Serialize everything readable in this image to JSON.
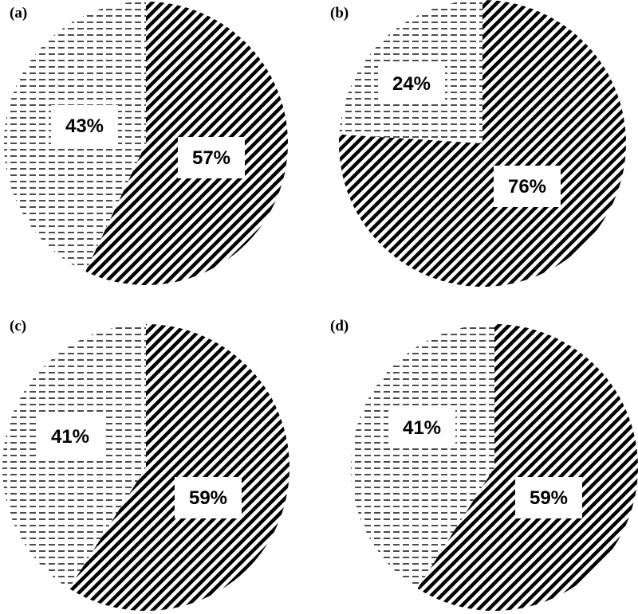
{
  "chart_data": [
    {
      "type": "pie",
      "panel_label": "(a)",
      "slices": [
        {
          "value": 57,
          "label": "57%",
          "pattern": "diagonal-hatch"
        },
        {
          "value": 43,
          "label": "43%",
          "pattern": "dashed-horizontal"
        }
      ]
    },
    {
      "type": "pie",
      "panel_label": "(b)",
      "slices": [
        {
          "value": 76,
          "label": "76%",
          "pattern": "diagonal-hatch"
        },
        {
          "value": 24,
          "label": "24%",
          "pattern": "dashed-horizontal"
        }
      ]
    },
    {
      "type": "pie",
      "panel_label": "(c)",
      "slices": [
        {
          "value": 59,
          "label": "59%",
          "pattern": "diagonal-hatch"
        },
        {
          "value": 41,
          "label": "41%",
          "pattern": "dashed-horizontal"
        }
      ]
    },
    {
      "type": "pie",
      "panel_label": "(d)",
      "slices": [
        {
          "value": 59,
          "label": "59%",
          "pattern": "diagonal-hatch"
        },
        {
          "value": 41,
          "label": "41%",
          "pattern": "dashed-horizontal"
        }
      ]
    }
  ],
  "colors": {
    "background": "#ffffff",
    "ink": "#000000",
    "label_box": "#ffffff"
  }
}
